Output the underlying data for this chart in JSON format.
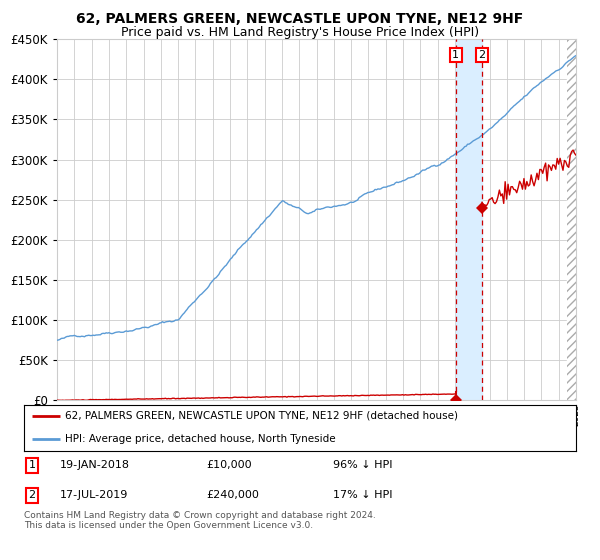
{
  "title": "62, PALMERS GREEN, NEWCASTLE UPON TYNE, NE12 9HF",
  "subtitle": "Price paid vs. HM Land Registry's House Price Index (HPI)",
  "legend_line1": "62, PALMERS GREEN, NEWCASTLE UPON TYNE, NE12 9HF (detached house)",
  "legend_line2": "HPI: Average price, detached house, North Tyneside",
  "table_row1": [
    "1",
    "19-JAN-2018",
    "£10,000",
    "96% ↓ HPI"
  ],
  "table_row2": [
    "2",
    "17-JUL-2019",
    "£240,000",
    "17% ↓ HPI"
  ],
  "footer": "Contains HM Land Registry data © Crown copyright and database right 2024.\nThis data is licensed under the Open Government Licence v3.0.",
  "hpi_color": "#5b9bd5",
  "price_color": "#cc0000",
  "vline_color": "#cc0000",
  "shade_color": "#daeeff",
  "ylim": [
    0,
    450000
  ],
  "yticks": [
    0,
    50000,
    100000,
    150000,
    200000,
    250000,
    300000,
    350000,
    400000,
    450000
  ],
  "background_color": "#ffffff",
  "grid_color": "#cccccc",
  "title_fontsize": 10,
  "subtitle_fontsize": 9,
  "label_fontsize": 8.5,
  "point1_year": 23.04,
  "point1_value": 10000,
  "point2_year": 24.54,
  "point2_value": 240000,
  "hatch_color": "#aaaaaa"
}
